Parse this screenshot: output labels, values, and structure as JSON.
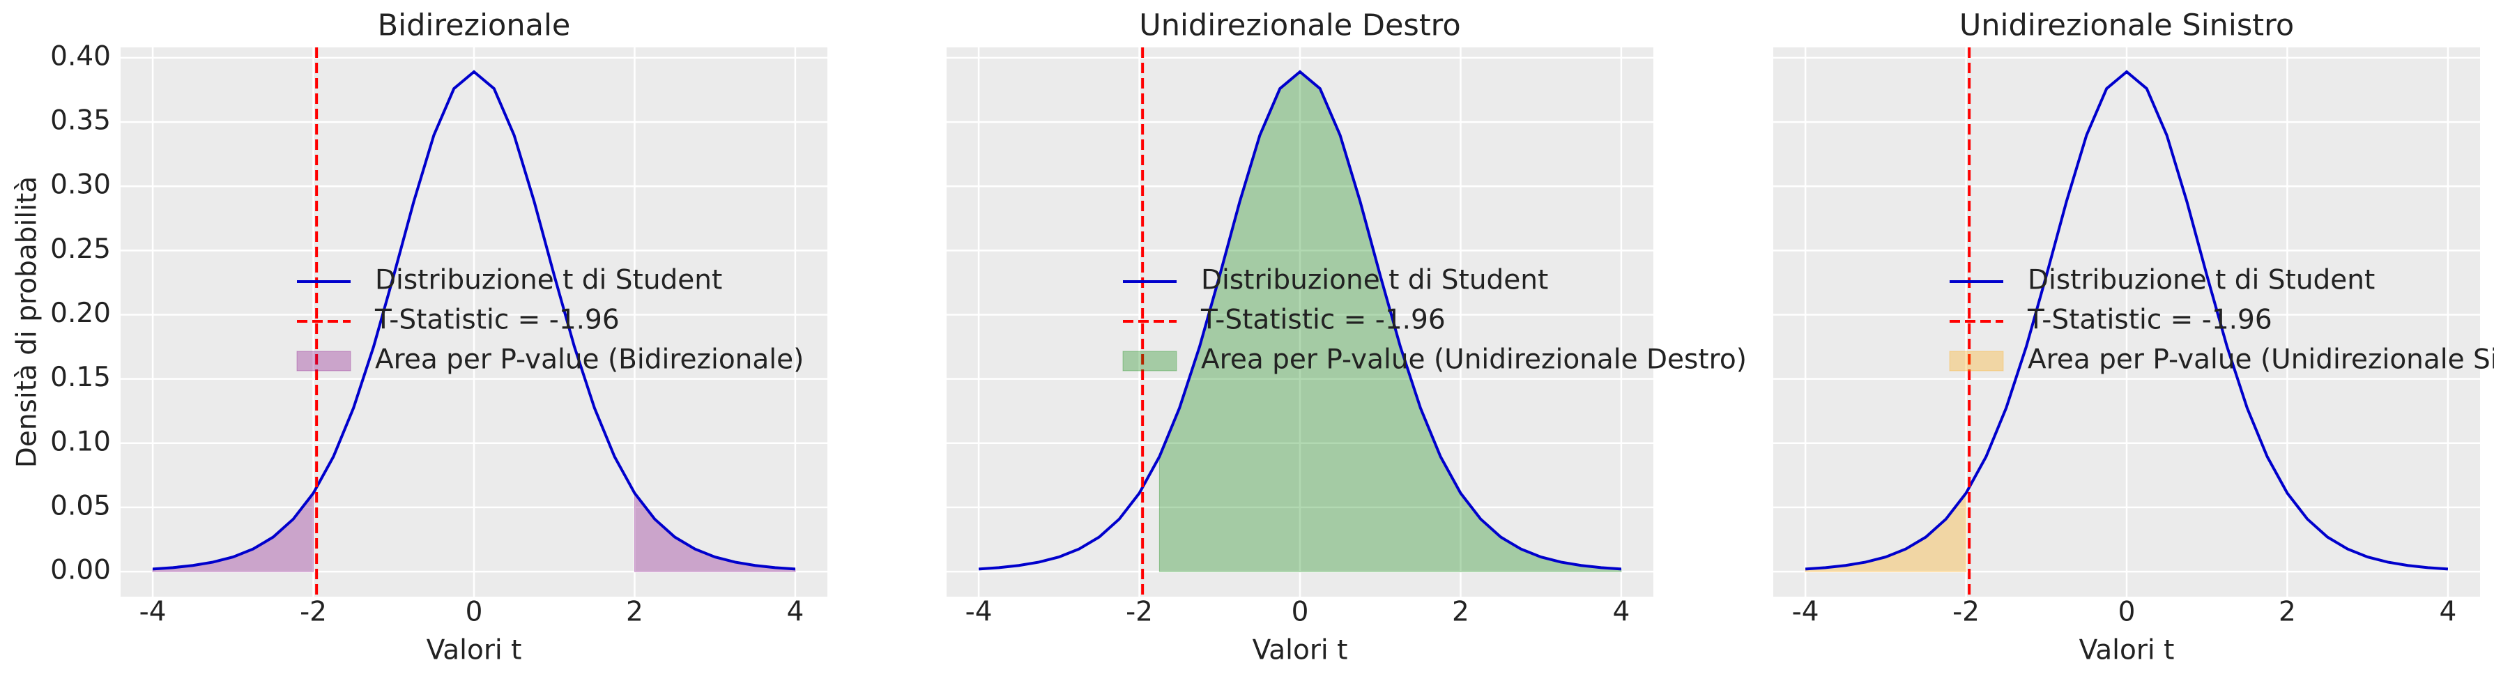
{
  "chart_data": [
    {
      "type": "line",
      "title": "Bidirezionale",
      "xlabel": "Valori t",
      "ylabel": "Densità di probabilità",
      "x": [
        -4,
        -3.75,
        -3.5,
        -3.25,
        -3,
        -2.75,
        -2.5,
        -2.25,
        -2,
        -1.75,
        -1.5,
        -1.25,
        -1,
        -0.75,
        -0.5,
        -0.25,
        0,
        0.25,
        0.5,
        0.75,
        1,
        1.25,
        1.5,
        1.75,
        2,
        2.25,
        2.5,
        2.75,
        3,
        3.25,
        3.5,
        3.75,
        4
      ],
      "series": [
        {
          "name": "Distribuzione t di Student",
          "color": "#0000cc",
          "values": [
            0.002,
            0.0031,
            0.0048,
            0.0074,
            0.0114,
            0.0176,
            0.0269,
            0.0409,
            0.0611,
            0.0895,
            0.1274,
            0.1751,
            0.2304,
            0.288,
            0.3397,
            0.376,
            0.3891,
            0.376,
            0.3397,
            0.288,
            0.2304,
            0.1751,
            0.1274,
            0.0895,
            0.0611,
            0.0409,
            0.0269,
            0.0176,
            0.0114,
            0.0074,
            0.0048,
            0.0031,
            0.002
          ]
        }
      ],
      "statistic": {
        "name": "T-Statistic = -1.96",
        "value": -1.96,
        "color": "#ff0000"
      },
      "fill": {
        "name": "Area per P-value (Bidirezionale)",
        "color": "#800080",
        "alpha": 0.3,
        "region": "two-sided"
      },
      "xlim": [
        -4.4,
        4.4
      ],
      "ylim": [
        -0.0195,
        0.4081
      ],
      "xticks": [
        -4,
        -2,
        0,
        2,
        4
      ],
      "yticks": [
        {
          "value": 0,
          "label": "0.00"
        },
        {
          "value": 0.05,
          "label": "0.05"
        },
        {
          "value": 0.1,
          "label": "0.10"
        },
        {
          "value": 0.15,
          "label": "0.15"
        },
        {
          "value": 0.2,
          "label": "0.20"
        },
        {
          "value": 0.25,
          "label": "0.25"
        },
        {
          "value": 0.3,
          "label": "0.30"
        },
        {
          "value": 0.35,
          "label": "0.35"
        },
        {
          "value": 0.4,
          "label": "0.40"
        }
      ],
      "grid": true
    },
    {
      "type": "line",
      "title": "Unidirezionale Destro",
      "xlabel": "Valori t",
      "x": [
        -4,
        -3.75,
        -3.5,
        -3.25,
        -3,
        -2.75,
        -2.5,
        -2.25,
        -2,
        -1.75,
        -1.5,
        -1.25,
        -1,
        -0.75,
        -0.5,
        -0.25,
        0,
        0.25,
        0.5,
        0.75,
        1,
        1.25,
        1.5,
        1.75,
        2,
        2.25,
        2.5,
        2.75,
        3,
        3.25,
        3.5,
        3.75,
        4
      ],
      "series": [
        {
          "name": "Distribuzione t di Student",
          "color": "#0000cc",
          "values": [
            0.002,
            0.0031,
            0.0048,
            0.0074,
            0.0114,
            0.0176,
            0.0269,
            0.0409,
            0.0611,
            0.0895,
            0.1274,
            0.1751,
            0.2304,
            0.288,
            0.3397,
            0.376,
            0.3891,
            0.376,
            0.3397,
            0.288,
            0.2304,
            0.1751,
            0.1274,
            0.0895,
            0.0611,
            0.0409,
            0.0269,
            0.0176,
            0.0114,
            0.0074,
            0.0048,
            0.0031,
            0.002
          ]
        }
      ],
      "statistic": {
        "name": "T-Statistic = -1.96",
        "value": -1.96,
        "color": "#ff0000"
      },
      "fill": {
        "name": "Area per P-value (Unidirezionale Destro)",
        "color": "#008000",
        "alpha": 0.3,
        "region": "right"
      },
      "xlim": [
        -4.4,
        4.4
      ],
      "ylim": [
        -0.0195,
        0.4081
      ],
      "xticks": [
        -4,
        -2,
        0,
        2,
        4
      ],
      "yticks": [
        0,
        0.05,
        0.1,
        0.15,
        0.2,
        0.25,
        0.3,
        0.35,
        0.4
      ],
      "grid": true
    },
    {
      "type": "line",
      "title": "Unidirezionale Sinistro",
      "xlabel": "Valori t",
      "x": [
        -4,
        -3.75,
        -3.5,
        -3.25,
        -3,
        -2.75,
        -2.5,
        -2.25,
        -2,
        -1.75,
        -1.5,
        -1.25,
        -1,
        -0.75,
        -0.5,
        -0.25,
        0,
        0.25,
        0.5,
        0.75,
        1,
        1.25,
        1.5,
        1.75,
        2,
        2.25,
        2.5,
        2.75,
        3,
        3.25,
        3.5,
        3.75,
        4
      ],
      "series": [
        {
          "name": "Distribuzione t di Student",
          "color": "#0000cc",
          "values": [
            0.002,
            0.0031,
            0.0048,
            0.0074,
            0.0114,
            0.0176,
            0.0269,
            0.0409,
            0.0611,
            0.0895,
            0.1274,
            0.1751,
            0.2304,
            0.288,
            0.3397,
            0.376,
            0.3891,
            0.376,
            0.3397,
            0.288,
            0.2304,
            0.1751,
            0.1274,
            0.0895,
            0.0611,
            0.0409,
            0.0269,
            0.0176,
            0.0114,
            0.0074,
            0.0048,
            0.0031,
            0.002
          ]
        }
      ],
      "statistic": {
        "name": "T-Statistic = -1.96",
        "value": -1.96,
        "color": "#ff0000"
      },
      "fill": {
        "name": "Area per P-value (Unidirezionale Sinistro)",
        "color": "#ffa500",
        "alpha": 0.3,
        "region": "left"
      },
      "xlim": [
        -4.4,
        4.4
      ],
      "ylim": [
        -0.0195,
        0.4081
      ],
      "xticks": [
        -4,
        -2,
        0,
        2,
        4
      ],
      "yticks": [
        0,
        0.05,
        0.1,
        0.15,
        0.2,
        0.25,
        0.3,
        0.35,
        0.4
      ],
      "grid": true
    }
  ]
}
